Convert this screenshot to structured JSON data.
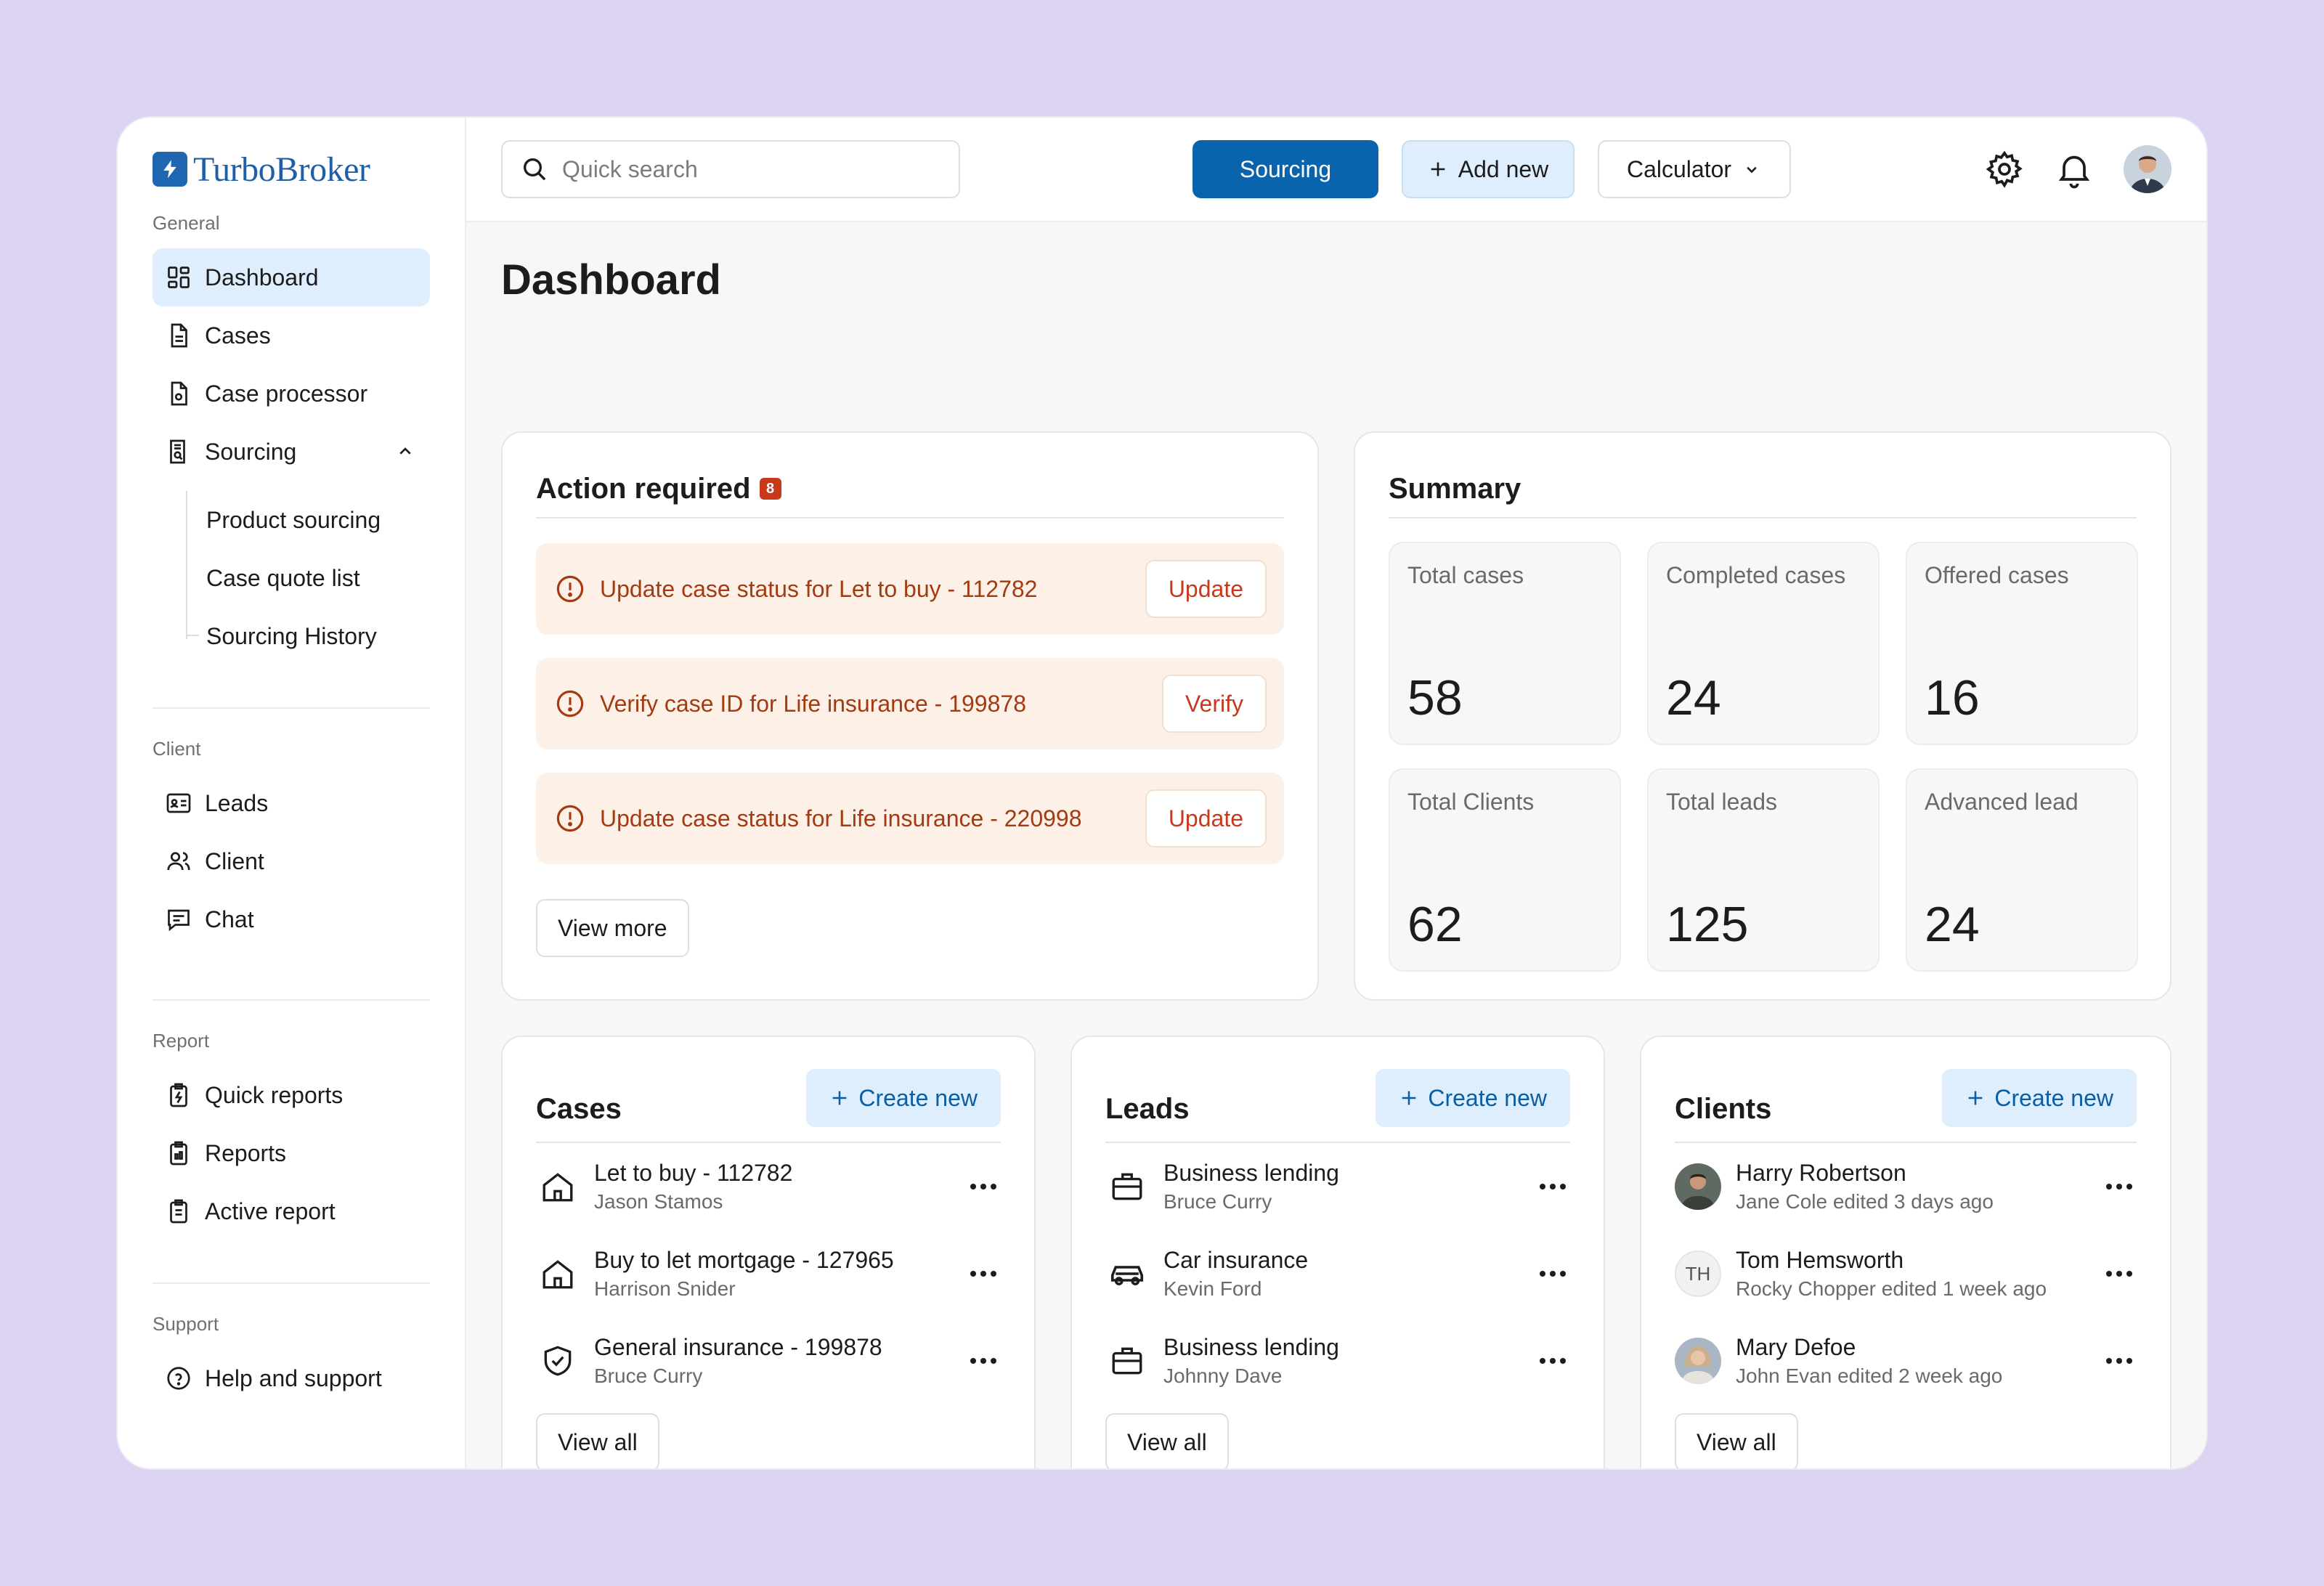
{
  "app": {
    "brand": "TurboBroker"
  },
  "sidebar": {
    "general_label": "General",
    "general": [
      {
        "label": "Dashboard",
        "icon": "dashboard-icon"
      },
      {
        "label": "Cases",
        "icon": "document-icon"
      },
      {
        "label": "Case processor",
        "icon": "document-settings-icon"
      },
      {
        "label": "Sourcing",
        "icon": "document-search-icon"
      }
    ],
    "sourcing_sub": [
      "Product sourcing",
      "Case quote list",
      "Sourcing History"
    ],
    "client_label": "Client",
    "client": [
      {
        "label": "Leads",
        "icon": "id-card-icon"
      },
      {
        "label": "Client",
        "icon": "users-icon"
      },
      {
        "label": "Chat",
        "icon": "chat-icon"
      }
    ],
    "report_label": "Report",
    "report": [
      {
        "label": "Quick reports",
        "icon": "report-lightning-icon"
      },
      {
        "label": "Reports",
        "icon": "clipboard-icon"
      },
      {
        "label": "Active report",
        "icon": "clipboard-list-icon"
      }
    ],
    "support_label": "Support",
    "support": [
      {
        "label": "Help and support",
        "icon": "help-icon"
      }
    ]
  },
  "topbar": {
    "search_placeholder": "Quick search",
    "sourcing_button": "Sourcing",
    "add_new_button": "Add new",
    "calculator_button": "Calculator"
  },
  "page_title": "Dashboard",
  "action_required": {
    "title": "Action required",
    "count": "8",
    "items": [
      {
        "text": "Update case status for Let to buy - 112782",
        "action": "Update"
      },
      {
        "text": "Verify case ID for Life insurance - 199878",
        "action": "Verify"
      },
      {
        "text": "Update case status for Life insurance - 220998",
        "action": "Update"
      }
    ],
    "view_more": "View more"
  },
  "summary": {
    "title": "Summary",
    "stats": [
      {
        "label": "Total cases",
        "value": "58"
      },
      {
        "label": "Completed cases",
        "value": "24"
      },
      {
        "label": "Offered cases",
        "value": "16"
      },
      {
        "label": "Total Clients",
        "value": "62"
      },
      {
        "label": "Total leads",
        "value": "125"
      },
      {
        "label": "Advanced lead",
        "value": "24"
      }
    ]
  },
  "cases": {
    "title": "Cases",
    "create": "Create new",
    "rows": [
      {
        "title": "Let to buy - 112782",
        "sub": "Jason Stamos",
        "icon": "home-icon"
      },
      {
        "title": "Buy to let mortgage - 127965",
        "sub": "Harrison Snider",
        "icon": "home-icon"
      },
      {
        "title": "General insurance - 199878",
        "sub": "Bruce Curry",
        "icon": "shield-check-icon"
      }
    ],
    "view_all": "View all"
  },
  "leads": {
    "title": "Leads",
    "create": "Create new",
    "rows": [
      {
        "title": "Business lending",
        "sub": "Bruce Curry",
        "icon": "briefcase-icon"
      },
      {
        "title": "Car insurance",
        "sub": "Kevin Ford",
        "icon": "car-icon"
      },
      {
        "title": "Business lending",
        "sub": "Johnny Dave",
        "icon": "briefcase-icon"
      }
    ],
    "view_all": "View all"
  },
  "clients": {
    "title": "Clients",
    "create": "Create new",
    "rows": [
      {
        "title": "Harry Robertson",
        "sub": "Jane Cole edited 3 days ago",
        "avatar": "photo"
      },
      {
        "title": "Tom Hemsworth",
        "sub": "Rocky Chopper edited 1 week ago",
        "avatar": "TH"
      },
      {
        "title": "Mary Defoe",
        "sub": "John Evan edited 2 week ago",
        "avatar": "photo"
      }
    ],
    "view_all": "View all"
  },
  "colors": {
    "primary": "#0a64ad",
    "soft_blue": "#deeefc",
    "alert_bg": "#fdf1e7",
    "alert_text": "#a43a12",
    "badge": "#c8391c",
    "page_bg": "#dcd2f2"
  }
}
